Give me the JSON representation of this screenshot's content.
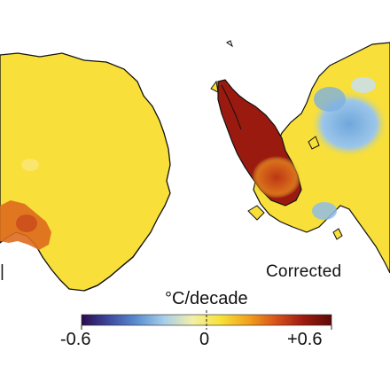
{
  "panel_right_label": "Corrected",
  "panel_left_partial_label": "|",
  "colorbar": {
    "unit_label": "°C/decade",
    "tick_labels": [
      "-0.6",
      "0",
      "+0.6"
    ],
    "min": -0.6,
    "max": 0.6,
    "colors": [
      "#2a0b4d",
      "#3e4aa0",
      "#5b8fd0",
      "#a9cfea",
      "#f2f0a8",
      "#f7e23a",
      "#f1a21c",
      "#d8521a",
      "#9b1a10",
      "#5e0a08"
    ]
  },
  "map_colors": {
    "background_trend": "#f8df3a",
    "warming_strong": "#9b1a10",
    "warming_moderate": "#d8521a",
    "cooling": "#6fa7dc",
    "coastline": "#111111"
  }
}
